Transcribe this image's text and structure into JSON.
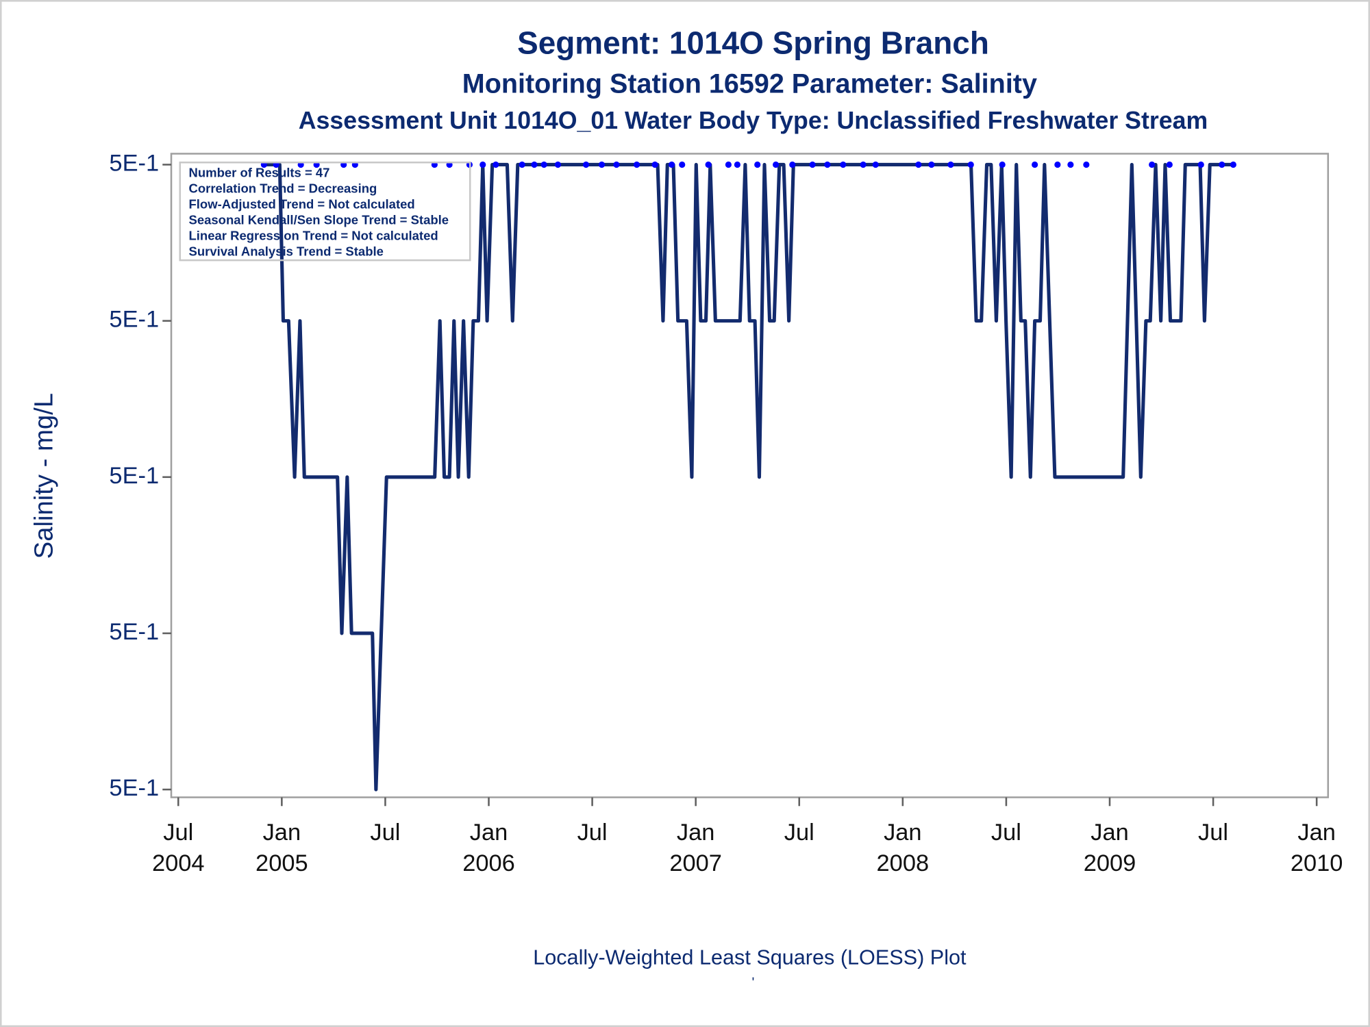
{
  "chart_data": {
    "type": "line",
    "title": "Segment: 1014O  Spring Branch",
    "subtitle": "Monitoring Station 16592 Parameter: Salinity",
    "subtitle2": "Assessment Unit 1014O_01   Water Body Type: Unclassified Freshwater Stream",
    "annotation_lines": [
      "Number of Results = 47",
      "Correlation Trend = Decreasing",
      "Flow-Adjusted Trend = Not calculated",
      "Seasonal Kendall/Sen Slope Trend = Stable",
      "Linear Regression Trend = Not calculated",
      "Survival Analysis Trend = Stable"
    ],
    "y_label": "Salinity - mg/L",
    "footnote": "Locally-Weighted Least Squares (LOESS) Plot",
    "footnote2": "'",
    "xlim": [
      2004.466,
      2010.055
    ],
    "xticks": [
      {
        "value": 2004.5,
        "label": [
          "Jul",
          "2004"
        ]
      },
      {
        "value": 2005.0,
        "label": [
          "Jan",
          "2005"
        ]
      },
      {
        "value": 2005.5,
        "label": [
          "Jul",
          ""
        ]
      },
      {
        "value": 2006.0,
        "label": [
          "Jan",
          "2006"
        ]
      },
      {
        "value": 2006.5,
        "label": [
          "Jul",
          ""
        ]
      },
      {
        "value": 2007.0,
        "label": [
          "Jan",
          "2007"
        ]
      },
      {
        "value": 2007.5,
        "label": [
          "Jul",
          ""
        ]
      },
      {
        "value": 2008.0,
        "label": [
          "Jan",
          "2008"
        ]
      },
      {
        "value": 2008.5,
        "label": [
          "Jul",
          ""
        ]
      },
      {
        "value": 2009.0,
        "label": [
          "Jan",
          "2009"
        ]
      },
      {
        "value": 2009.5,
        "label": [
          "Jul",
          ""
        ]
      },
      {
        "value": 2010.0,
        "label": [
          "Jan",
          "2010"
        ]
      }
    ],
    "ylim": [
      0.49595,
      0.50007
    ],
    "yticks": [
      {
        "value": 0.496,
        "label": "5E-1"
      },
      {
        "value": 0.497,
        "label": "5E-1"
      },
      {
        "value": 0.498,
        "label": "5E-1"
      },
      {
        "value": 0.499,
        "label": "5E-1"
      },
      {
        "value": 0.5,
        "label": "5E-1"
      }
    ],
    "series": [
      {
        "type": "line",
        "color": "#132b6e",
        "x": [
          2004.906,
          2004.99,
          2005.007,
          2005.033,
          2005.062,
          2005.088,
          2005.109,
          2005.269,
          2005.29,
          2005.316,
          2005.337,
          2005.438,
          2005.455,
          2005.506,
          2005.739,
          2005.764,
          2005.785,
          2005.81,
          2005.832,
          2005.853,
          2005.878,
          2005.903,
          2005.925,
          2005.95,
          2005.971,
          2005.992,
          2006.017,
          2006.039,
          2006.089,
          2006.115,
          2006.14,
          2006.816,
          2006.842,
          2006.863,
          2006.892,
          2006.914,
          2006.956,
          2006.981,
          2007.002,
          2007.024,
          2007.049,
          2007.07,
          2007.095,
          2007.214,
          2007.239,
          2007.26,
          2007.286,
          2007.307,
          2007.332,
          2007.357,
          2007.379,
          2007.404,
          2007.425,
          2007.45,
          2007.472,
          2008.33,
          2008.355,
          2008.38,
          2008.406,
          2008.427,
          2008.452,
          2008.478,
          2008.499,
          2008.524,
          2008.549,
          2008.571,
          2008.592,
          2008.617,
          2008.638,
          2008.664,
          2008.685,
          2008.735,
          2009.065,
          2009.107,
          2009.15,
          2009.175,
          2009.196,
          2009.222,
          2009.247,
          2009.268,
          2009.293,
          2009.344,
          2009.365,
          2009.437,
          2009.458,
          2009.484,
          2009.598
        ],
        "values": [
          0.5,
          0.5,
          0.499,
          0.499,
          0.498,
          0.499,
          0.498,
          0.498,
          0.497,
          0.498,
          0.497,
          0.497,
          0.496,
          0.498,
          0.498,
          0.499,
          0.498,
          0.498,
          0.499,
          0.498,
          0.499,
          0.498,
          0.499,
          0.499,
          0.5,
          0.499,
          0.5,
          0.5,
          0.5,
          0.499,
          0.5,
          0.5,
          0.499,
          0.5,
          0.5,
          0.499,
          0.499,
          0.498,
          0.5,
          0.499,
          0.499,
          0.5,
          0.499,
          0.499,
          0.5,
          0.499,
          0.499,
          0.498,
          0.5,
          0.499,
          0.499,
          0.5,
          0.5,
          0.499,
          0.5,
          0.5,
          0.499,
          0.499,
          0.5,
          0.5,
          0.499,
          0.5,
          0.499,
          0.498,
          0.5,
          0.499,
          0.499,
          0.498,
          0.499,
          0.499,
          0.5,
          0.498,
          0.498,
          0.5,
          0.498,
          0.499,
          0.499,
          0.5,
          0.499,
          0.5,
          0.499,
          0.499,
          0.5,
          0.5,
          0.499,
          0.5,
          0.5
        ]
      },
      {
        "type": "scatter",
        "color": "#0000ff",
        "x": [
          2004.914,
          2004.973,
          2005.092,
          2005.168,
          2005.299,
          2005.354,
          2005.738,
          2005.81,
          2005.907,
          2005.971,
          2006.034,
          2006.161,
          2006.22,
          2006.267,
          2006.334,
          2006.47,
          2006.546,
          2006.617,
          2006.715,
          2006.803,
          2006.884,
          2006.934,
          2007.061,
          2007.158,
          2007.201,
          2007.298,
          2007.387,
          2007.467,
          2007.564,
          2007.636,
          2007.712,
          2007.809,
          2007.869,
          2008.076,
          2008.139,
          2008.232,
          2008.329,
          2008.481,
          2008.638,
          2008.748,
          2008.811,
          2008.887,
          2009.204,
          2009.289,
          2009.441,
          2009.542,
          2009.597
        ],
        "values": [
          0.5,
          0.5,
          0.5,
          0.5,
          0.5,
          0.5,
          0.5,
          0.5,
          0.5,
          0.5,
          0.5,
          0.5,
          0.5,
          0.5,
          0.5,
          0.5,
          0.5,
          0.5,
          0.5,
          0.5,
          0.5,
          0.5,
          0.5,
          0.5,
          0.5,
          0.5,
          0.5,
          0.5,
          0.5,
          0.5,
          0.5,
          0.5,
          0.5,
          0.5,
          0.5,
          0.5,
          0.5,
          0.5,
          0.5,
          0.5,
          0.5,
          0.5,
          0.5,
          0.5,
          0.5,
          0.5,
          0.5
        ]
      }
    ]
  }
}
